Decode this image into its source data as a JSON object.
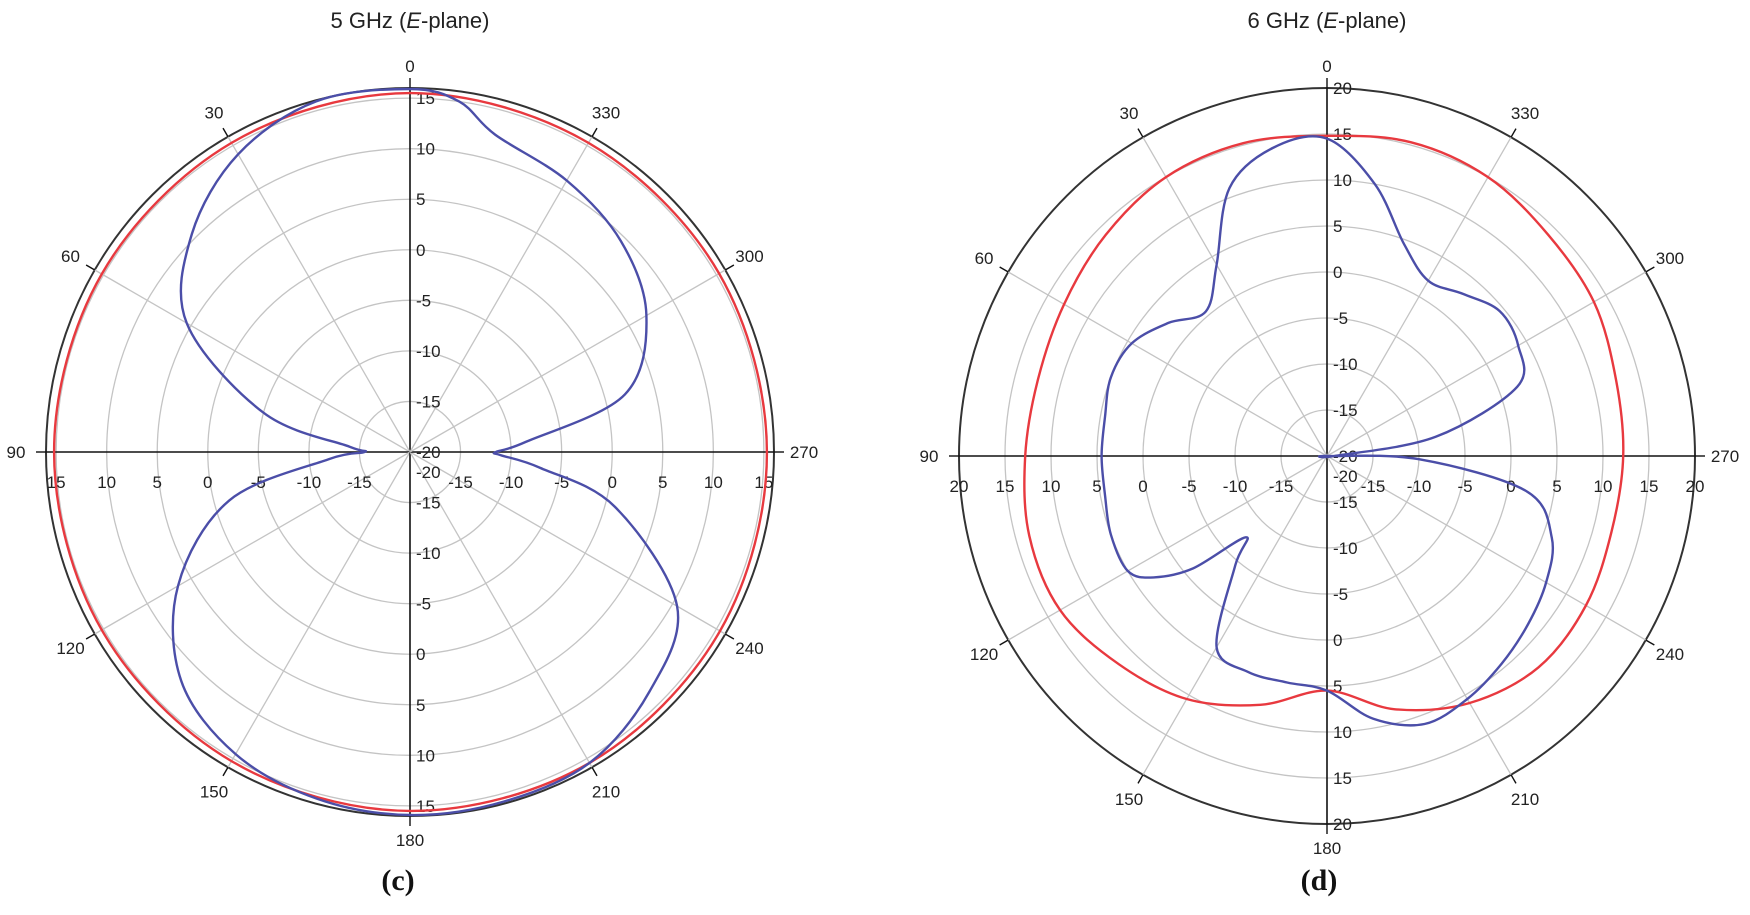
{
  "chart_data": [
    {
      "type": "polar-line",
      "title_main": "5 GHz (",
      "title_italic": "E",
      "title_tail": "-plane)",
      "panel_label": "(c)",
      "r_range": [
        -20,
        16
      ],
      "r_tick_labels": [
        "15",
        "10",
        "5",
        "0",
        "-5",
        "-10",
        "-15",
        "-20"
      ],
      "angle_tick_labels": [
        "0",
        "30",
        "60",
        "90",
        "120",
        "150",
        "180",
        "210",
        "240",
        "270",
        "300",
        "330"
      ],
      "colors": {
        "series1": "#e8393f",
        "series2": "#4b4ea8",
        "outer": "#333333"
      },
      "series": [
        {
          "angles": [
            0,
            30,
            60,
            90,
            120,
            150,
            180,
            210,
            240,
            270,
            300,
            330,
            360
          ],
          "values": [
            15.5,
            15.3,
            15.2,
            15.2,
            15.2,
            15.3,
            15.5,
            15.5,
            15.4,
            15.3,
            15.3,
            15.3,
            15.5
          ]
        },
        {
          "angles": [
            0,
            15,
            30,
            45,
            60,
            75,
            85,
            90,
            95,
            105,
            120,
            135,
            150,
            165,
            180,
            195,
            210,
            225,
            240,
            255,
            263,
            268,
            270,
            275,
            285,
            300,
            315,
            330,
            345,
            352,
            360
          ],
          "values": [
            15.9,
            15.9,
            14.0,
            10.5,
            5.5,
            -5.0,
            -14.0,
            -15.5,
            -12.0,
            -1.5,
            6.5,
            12.0,
            14.5,
            15.5,
            15.9,
            15.8,
            15.5,
            13.5,
            10.5,
            1.0,
            -7.0,
            -11.0,
            -11.5,
            -8.5,
            2.0,
            7.0,
            9.5,
            11.0,
            12.5,
            15.0,
            15.9
          ]
        }
      ]
    },
    {
      "type": "polar-line",
      "title_main": "6 GHz (",
      "title_italic": "E",
      "title_tail": "-plane)",
      "panel_label": "(d)",
      "r_range": [
        -20,
        20
      ],
      "r_tick_labels": [
        "20",
        "15",
        "10",
        "5",
        "0",
        "-5",
        "-10",
        "-15",
        "-20"
      ],
      "angle_tick_labels": [
        "0",
        "30",
        "60",
        "90",
        "120",
        "150",
        "180",
        "210",
        "240",
        "270",
        "300",
        "330"
      ],
      "colors": {
        "series1": "#e8393f",
        "series2": "#4b4ea8",
        "outer": "#333333"
      },
      "series": [
        {
          "angles": [
            0,
            15,
            30,
            45,
            60,
            75,
            90,
            105,
            120,
            135,
            150,
            165,
            180,
            195,
            210,
            225,
            240,
            255,
            270,
            285,
            300,
            315,
            330,
            345,
            360
          ],
          "values": [
            14.8,
            15.2,
            15.0,
            14.0,
            13.0,
            12.5,
            12.8,
            13.5,
            13.5,
            12.0,
            10.5,
            8.0,
            5.5,
            8.5,
            11.0,
            12.5,
            12.5,
            12.0,
            12.2,
            12.5,
            13.5,
            14.0,
            15.0,
            15.3,
            14.8
          ]
        },
        {
          "angles": [
            0,
            10,
            20,
            30,
            40,
            50,
            60,
            70,
            80,
            90,
            100,
            110,
            120,
            125,
            130,
            135,
            140,
            150,
            160,
            170,
            180,
            190,
            200,
            210,
            220,
            230,
            240,
            250,
            260,
            268,
            270,
            272,
            280,
            290,
            300,
            310,
            320,
            330,
            340,
            350,
            360
          ],
          "values": [
            14.5,
            14.0,
            11.0,
            4.0,
            0.5,
            2.5,
            4.5,
            5.0,
            4.5,
            4.5,
            4.5,
            5.0,
            5.0,
            3.0,
            -1.0,
            -7.5,
            -4.5,
            4.0,
            5.0,
            5.0,
            5.5,
            9.0,
            11.0,
            10.5,
            9.5,
            8.5,
            7.5,
            6.0,
            2.0,
            -10.0,
            -20.0,
            -19.0,
            -8.0,
            2.0,
            4.0,
            4.5,
            3.0,
            2.0,
            4.5,
            10.0,
            14.5
          ]
        }
      ]
    }
  ]
}
